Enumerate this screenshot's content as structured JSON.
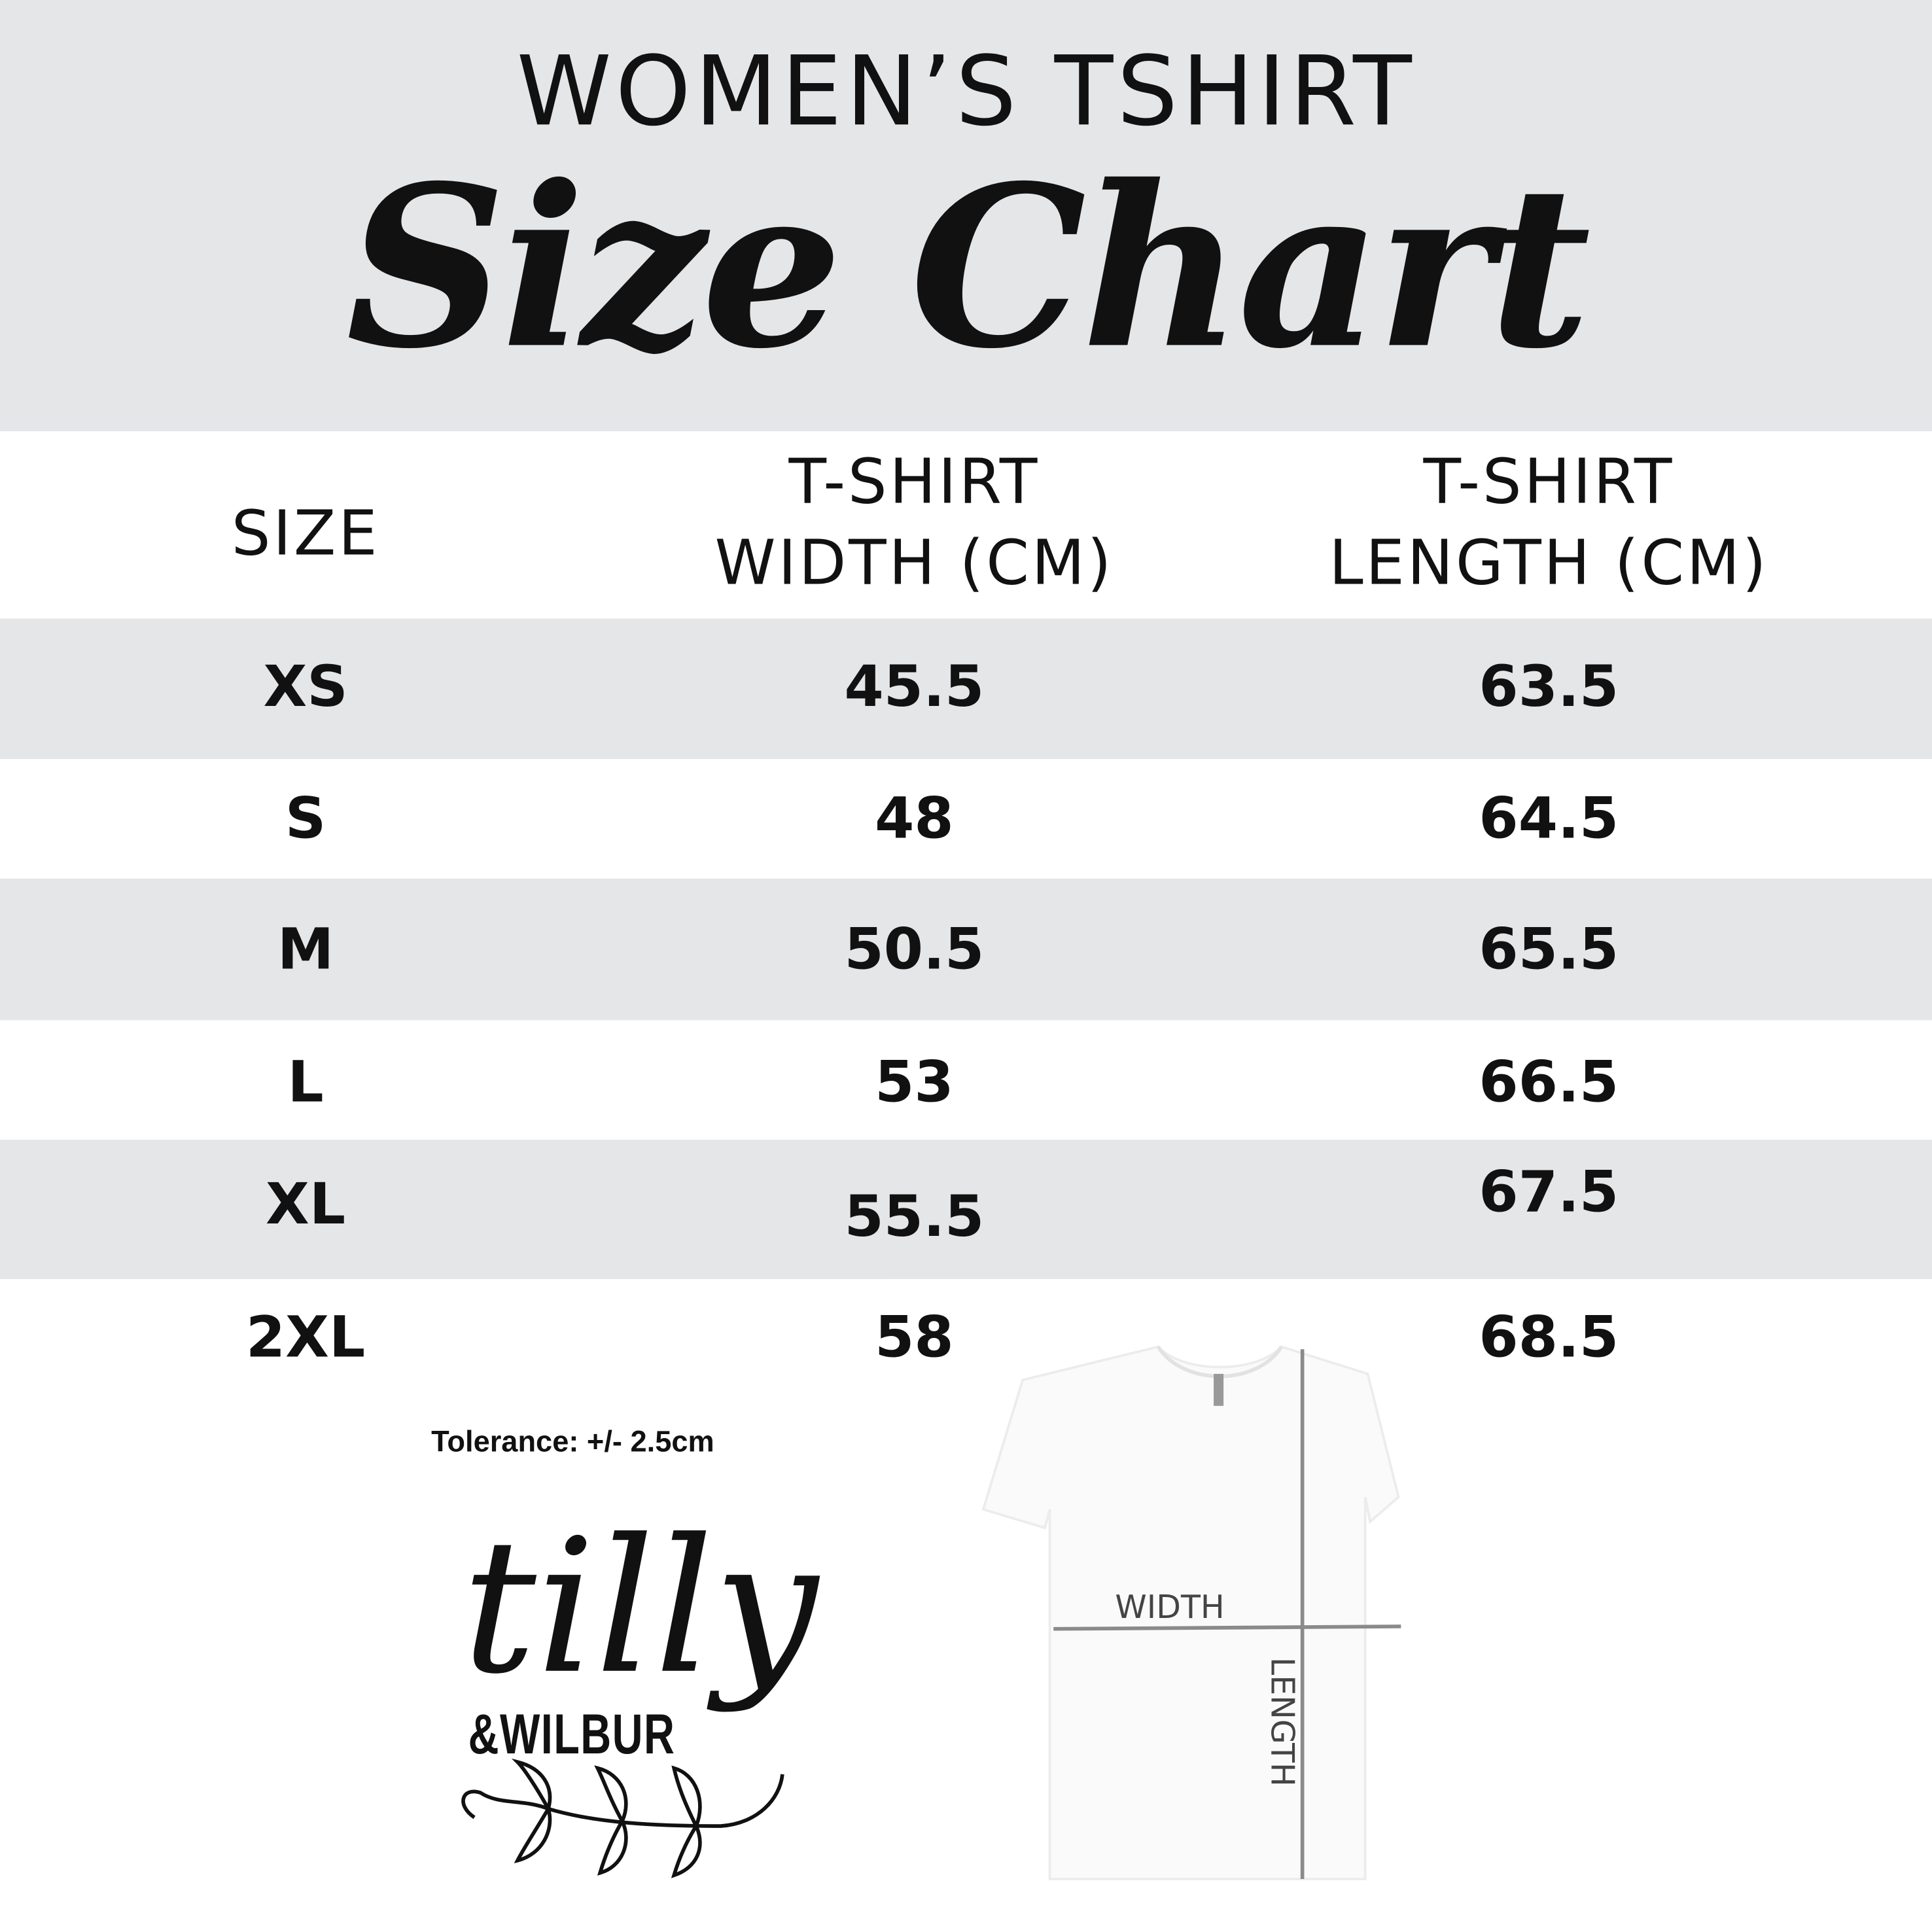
{
  "header": {
    "title": "WOMEN’S TSHIRT",
    "subtitle": "Size Chart"
  },
  "table": {
    "columns": [
      "SIZE",
      [
        "T-SHIRT",
        "WIDTH (CM)"
      ],
      [
        "T-SHIRT",
        "LENGTH (CM)"
      ]
    ],
    "rows": [
      {
        "size": "XS",
        "width": "45.5",
        "length": "63.5"
      },
      {
        "size": "S",
        "width": "48",
        "length": "64.5"
      },
      {
        "size": "M",
        "width": "50.5",
        "length": "65.5"
      },
      {
        "size": "L",
        "width": "53",
        "length": "66.5"
      },
      {
        "size": "XL",
        "width": "55.5",
        "length": "67.5"
      },
      {
        "size": "2XL",
        "width": "58",
        "length": "68.5"
      }
    ]
  },
  "tolerance": "Tolerance: +/- 2.5cm",
  "logo": {
    "line1": "tilly",
    "line2": "&WILBUR"
  },
  "diagram": {
    "width_label": "WIDTH",
    "length_label": "LENGTH"
  },
  "colors": {
    "band": "#e5e6e8",
    "text": "#111111",
    "measure_line": "#8a8a8a"
  }
}
